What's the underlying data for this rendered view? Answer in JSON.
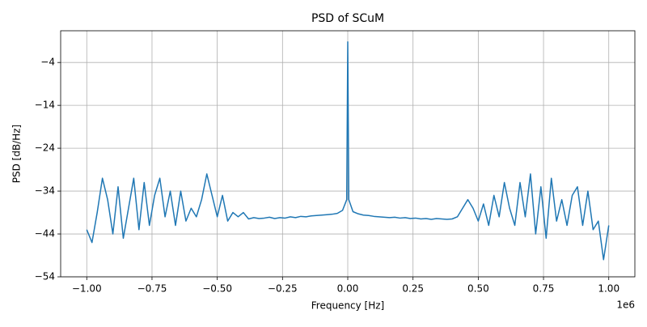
{
  "chart_data": {
    "type": "line",
    "title": "PSD of SCuM",
    "xlabel": "Frequency [Hz]",
    "ylabel": "PSD [dB/Hz]",
    "x_offset_label": "1e6",
    "x": [
      -1000000,
      -980000,
      -960000,
      -940000,
      -920000,
      -900000,
      -880000,
      -860000,
      -840000,
      -820000,
      -800000,
      -780000,
      -760000,
      -740000,
      -720000,
      -700000,
      -680000,
      -660000,
      -640000,
      -620000,
      -600000,
      -580000,
      -560000,
      -540000,
      -520000,
      -500000,
      -480000,
      -460000,
      -440000,
      -420000,
      -400000,
      -380000,
      -360000,
      -340000,
      -320000,
      -300000,
      -280000,
      -260000,
      -240000,
      -220000,
      -200000,
      -180000,
      -160000,
      -140000,
      -120000,
      -100000,
      -80000,
      -60000,
      -40000,
      -20000,
      -4000,
      0,
      4000,
      20000,
      40000,
      60000,
      80000,
      100000,
      120000,
      140000,
      160000,
      180000,
      200000,
      220000,
      240000,
      260000,
      280000,
      300000,
      320000,
      340000,
      360000,
      380000,
      400000,
      420000,
      440000,
      460000,
      480000,
      500000,
      520000,
      540000,
      560000,
      580000,
      600000,
      620000,
      640000,
      660000,
      680000,
      700000,
      720000,
      740000,
      760000,
      780000,
      800000,
      820000,
      840000,
      860000,
      880000,
      900000,
      920000,
      940000,
      960000,
      980000,
      1000000
    ],
    "series": [
      {
        "name": "PSD",
        "color": "#1f77b4",
        "values": [
          -43,
          -46,
          -39,
          -31,
          -36,
          -44,
          -33,
          -45,
          -38,
          -31,
          -43,
          -32,
          -42,
          -35,
          -31,
          -40,
          -34,
          -42,
          -34,
          -41,
          -38,
          -40,
          -36,
          -30,
          -35,
          -40,
          -35,
          -41,
          -39,
          -40,
          -39,
          -40.5,
          -40.2,
          -40.4,
          -40.3,
          -40.1,
          -40.4,
          -40.2,
          -40.3,
          -40,
          -40.2,
          -39.9,
          -40,
          -39.8,
          -39.7,
          -39.6,
          -39.5,
          -39.4,
          -39.2,
          -38.5,
          -36,
          0.8,
          -36,
          -38.8,
          -39.3,
          -39.6,
          -39.7,
          -39.9,
          -40,
          -40.1,
          -40.2,
          -40.1,
          -40.3,
          -40.2,
          -40.4,
          -40.3,
          -40.5,
          -40.4,
          -40.6,
          -40.4,
          -40.5,
          -40.6,
          -40.5,
          -40,
          -38,
          -36,
          -38,
          -41,
          -37,
          -42,
          -35,
          -40,
          -32,
          -38,
          -42,
          -32,
          -40,
          -30,
          -44,
          -33,
          -45,
          -31,
          -41,
          -36,
          -42,
          -35,
          -33,
          -42,
          -34,
          -43,
          -41,
          -50,
          -42
        ]
      }
    ],
    "xlim": [
      -1100000,
      1100000
    ],
    "xticks": [
      {
        "value": -1000000,
        "label": "−1.00"
      },
      {
        "value": -750000,
        "label": "−0.75"
      },
      {
        "value": -500000,
        "label": "−0.50"
      },
      {
        "value": -250000,
        "label": "−0.25"
      },
      {
        "value": 0,
        "label": "0.00"
      },
      {
        "value": 250000,
        "label": "0.25"
      },
      {
        "value": 500000,
        "label": "0.50"
      },
      {
        "value": 750000,
        "label": "0.75"
      },
      {
        "value": 1000000,
        "label": "1.00"
      }
    ],
    "ylim": [
      -54,
      3.4
    ],
    "yticks": [
      {
        "value": -4,
        "label": "−4"
      },
      {
        "value": -14,
        "label": "−14"
      },
      {
        "value": -24,
        "label": "−24"
      },
      {
        "value": -34,
        "label": "−34"
      },
      {
        "value": -44,
        "label": "−44"
      },
      {
        "value": -54,
        "label": "−54"
      }
    ],
    "grid": true
  }
}
